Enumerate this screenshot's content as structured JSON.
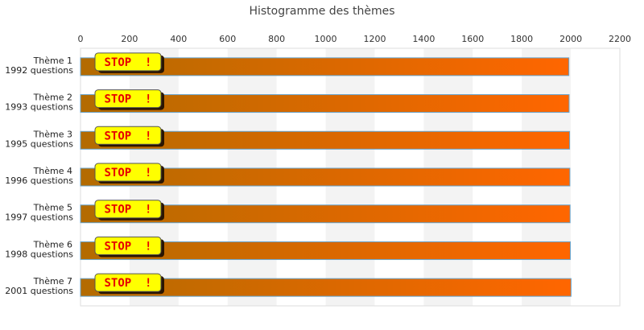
{
  "chart_data": {
    "type": "bar",
    "orientation": "horizontal",
    "title": "Histogramme des thèmes",
    "xlabel": "",
    "ylabel": "",
    "xlim": [
      0,
      2200
    ],
    "x_ticks": [
      0,
      200,
      400,
      600,
      800,
      1000,
      1200,
      1400,
      1600,
      1800,
      2000,
      2200
    ],
    "x_axis_position": "top",
    "grid": "alternating vertical bands",
    "categories": [
      {
        "name": "Thème 1",
        "sub": "1992 questions"
      },
      {
        "name": "Thème 2",
        "sub": "1993 questions"
      },
      {
        "name": "Thème 3",
        "sub": "1995 questions"
      },
      {
        "name": "Thème 4",
        "sub": "1996 questions"
      },
      {
        "name": "Thème 5",
        "sub": "1997 questions"
      },
      {
        "name": "Thème 6",
        "sub": "1998 questions"
      },
      {
        "name": "Thème 7",
        "sub": "2001 questions"
      }
    ],
    "values": [
      1992,
      1993,
      1995,
      1996,
      1997,
      1998,
      2001
    ],
    "bar_label": "STOP  !",
    "colors": {
      "bar_start": "#b36b00",
      "bar_end": "#ff6600",
      "bar_border": "#66a3cc",
      "label_bg": "#ffff00",
      "label_text": "#e60000",
      "band": "#f3f3f3"
    }
  }
}
